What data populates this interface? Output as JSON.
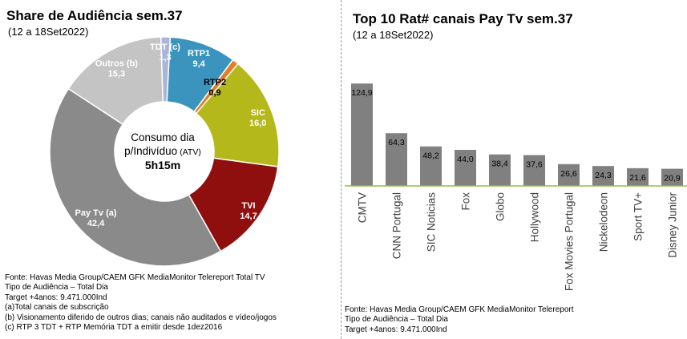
{
  "left": {
    "title": "Share de Audiência sem.37",
    "subtitle": "(12 a 18Set2022)",
    "center_line1": "Consumo dia",
    "center_line2_main": "p/Indivíduo",
    "center_line2_suffix": "(ATV)",
    "center_line3": "5h15m",
    "notes": [
      "Fonte: Havas Media Group/CAEM GFK MediaMonitor Telereport Total TV",
      "Tipo de Audiência – Total Dia",
      "Target +4anos: 9.471.000Ind",
      "(a)Total canais de subscrição",
      "(b) Visionamento diferido de outros dias; canais não auditados e vídeo/jogos",
      "(c) RTP 3 TDT + RTP Memória TDT a emitir desde 1dez2016"
    ]
  },
  "right": {
    "title": "Top 10 Rat# canais Pay Tv sem.37",
    "subtitle": "(12 a 18Set2022)",
    "notes": [
      "Fonte: Havas Media Group/CAEM GFK MediaMonitor Telereport",
      "Tipo de Audiência – Total Dia",
      "Target +4anos: 9.471.000Ind"
    ]
  },
  "chart_data": [
    {
      "type": "pie",
      "title": "Share de Audiência sem.37",
      "subtitle": "(12 a 18Set2022)",
      "categories": [
        "TDT (c)",
        "RTP1",
        "RTP2",
        "SIC",
        "TVI",
        "Pay Tv (a)",
        "Outros (b)"
      ],
      "values": [
        1.3,
        9.4,
        0.9,
        16.0,
        14.7,
        42.4,
        15.3
      ],
      "value_labels": [
        "1,3",
        "9,4",
        "0,9",
        "16,0",
        "14,7",
        "42,4",
        "15,3"
      ],
      "colors": [
        "#a9b6d9",
        "#3b94bd",
        "#e57d22",
        "#b5b81a",
        "#8f0f0f",
        "#8a8a8a",
        "#c4c4c4"
      ],
      "label_colors": [
        "#ffffff",
        "#ffffff",
        "#000000",
        "#ffffff",
        "#ffffff",
        "#ffffff",
        "#ffffff"
      ],
      "donut": true
    },
    {
      "type": "bar",
      "title": "Top 10 Rat# canais Pay Tv sem.37",
      "subtitle": "(12 a 18Set2022)",
      "categories": [
        "CMTV",
        "CNN Portugal",
        "SIC Noticias",
        "Fox",
        "Globo",
        "Hollywood",
        "Fox Movies Portugal",
        "Nickelodeon",
        "Sport TV+",
        "Disney Junior"
      ],
      "values": [
        124.9,
        64.3,
        48.2,
        44.0,
        38.4,
        37.6,
        26.6,
        24.3,
        21.6,
        20.9
      ],
      "value_labels": [
        "124,9",
        "64,3",
        "48,2",
        "44,0",
        "38,4",
        "37,6",
        "26,6",
        "24,3",
        "21,6",
        "20,9"
      ],
      "ylim": [
        0,
        130
      ],
      "bar_color": "#808080",
      "axis_color": "#8fbf4a",
      "grid": false
    }
  ]
}
